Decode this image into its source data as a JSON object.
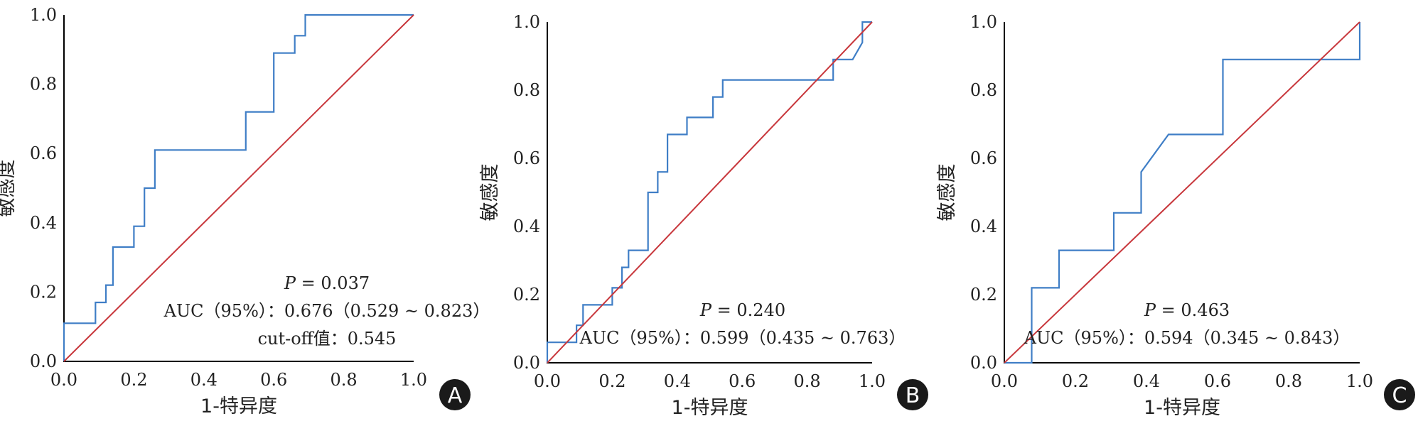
{
  "colors": {
    "roc": "#3f7ec6",
    "reference": "#c8373c",
    "axis": "#000000",
    "badge": "#1a1a1a"
  },
  "chart_data": [
    {
      "type": "line",
      "panel": "A",
      "xlabel": "1-特异度",
      "ylabel": "敏感度",
      "xlim": [
        0,
        1
      ],
      "ylim": [
        0,
        1
      ],
      "xticks": [
        "0.0",
        "0.2",
        "0.4",
        "0.6",
        "0.8",
        "1.0"
      ],
      "yticks": [
        "0.0",
        "0.2",
        "0.4",
        "0.6",
        "0.8",
        "1.0"
      ],
      "series": [
        {
          "name": "ROC",
          "x": [
            0,
            0,
            0.09,
            0.09,
            0.12,
            0.12,
            0.14,
            0.14,
            0.2,
            0.2,
            0.23,
            0.23,
            0.26,
            0.26,
            0.52,
            0.52,
            0.6,
            0.6,
            0.66,
            0.66,
            0.69,
            0.69,
            1.0
          ],
          "y": [
            0,
            0.11,
            0.11,
            0.17,
            0.17,
            0.22,
            0.22,
            0.33,
            0.33,
            0.39,
            0.39,
            0.5,
            0.5,
            0.61,
            0.61,
            0.72,
            0.72,
            0.89,
            0.89,
            0.94,
            0.94,
            1.0,
            1.0
          ]
        },
        {
          "name": "reference",
          "x": [
            0,
            1
          ],
          "y": [
            0,
            1
          ]
        }
      ],
      "annotations": {
        "p_prefix": "P",
        "p_value": " = 0.037",
        "auc": "AUC（95%）：0.676（0.529 ~ 0.823）",
        "cutoff": "cut-off值：0.545"
      }
    },
    {
      "type": "line",
      "panel": "B",
      "xlabel": "1-特异度",
      "ylabel": "敏感度",
      "xlim": [
        0,
        1
      ],
      "ylim": [
        0,
        1
      ],
      "xticks": [
        "0.0",
        "0.2",
        "0.4",
        "0.6",
        "0.8",
        "1.0"
      ],
      "yticks": [
        "0.0",
        "0.2",
        "0.4",
        "0.6",
        "0.8",
        "1.0"
      ],
      "series": [
        {
          "name": "ROC",
          "x": [
            0,
            0,
            0.09,
            0.09,
            0.11,
            0.11,
            0.2,
            0.2,
            0.23,
            0.23,
            0.25,
            0.25,
            0.31,
            0.31,
            0.34,
            0.34,
            0.37,
            0.37,
            0.43,
            0.43,
            0.51,
            0.51,
            0.54,
            0.54,
            0.88,
            0.88,
            0.94,
            0.97,
            0.97,
            1.0,
            1.0
          ],
          "y": [
            0,
            0.06,
            0.06,
            0.11,
            0.11,
            0.17,
            0.17,
            0.22,
            0.22,
            0.28,
            0.28,
            0.33,
            0.33,
            0.5,
            0.5,
            0.56,
            0.56,
            0.67,
            0.67,
            0.72,
            0.72,
            0.78,
            0.78,
            0.83,
            0.83,
            0.89,
            0.89,
            0.94,
            1.0,
            1.0,
            1.0
          ]
        },
        {
          "name": "reference",
          "x": [
            0,
            1
          ],
          "y": [
            0,
            1
          ]
        }
      ],
      "annotations": {
        "p_prefix": "P",
        "p_value": " = 0.240",
        "auc": "AUC（95%）：0.599（0.435 ~ 0.763）"
      }
    },
    {
      "type": "line",
      "panel": "C",
      "xlabel": "1-特异度",
      "ylabel": "敏感度",
      "xlim": [
        0,
        1
      ],
      "ylim": [
        0,
        1
      ],
      "xticks": [
        "0.0",
        "0.2",
        "0.4",
        "0.6",
        "0.8",
        "1.0"
      ],
      "yticks": [
        "0.0",
        "0.2",
        "0.4",
        "0.6",
        "0.8",
        "1.0"
      ],
      "series": [
        {
          "name": "ROC",
          "x": [
            0,
            0.077,
            0.077,
            0.154,
            0.154,
            0.308,
            0.308,
            0.385,
            0.385,
            0.462,
            0.615,
            0.615,
            1.0,
            1.0
          ],
          "y": [
            0,
            0,
            0.22,
            0.22,
            0.33,
            0.33,
            0.44,
            0.44,
            0.56,
            0.67,
            0.67,
            0.89,
            0.89,
            1.0
          ]
        },
        {
          "name": "reference",
          "x": [
            0,
            1
          ],
          "y": [
            0,
            1
          ]
        }
      ],
      "annotations": {
        "p_prefix": "P",
        "p_value": " = 0.463",
        "auc": "AUC（95%）：0.594（0.345 ~ 0.843）"
      }
    }
  ]
}
